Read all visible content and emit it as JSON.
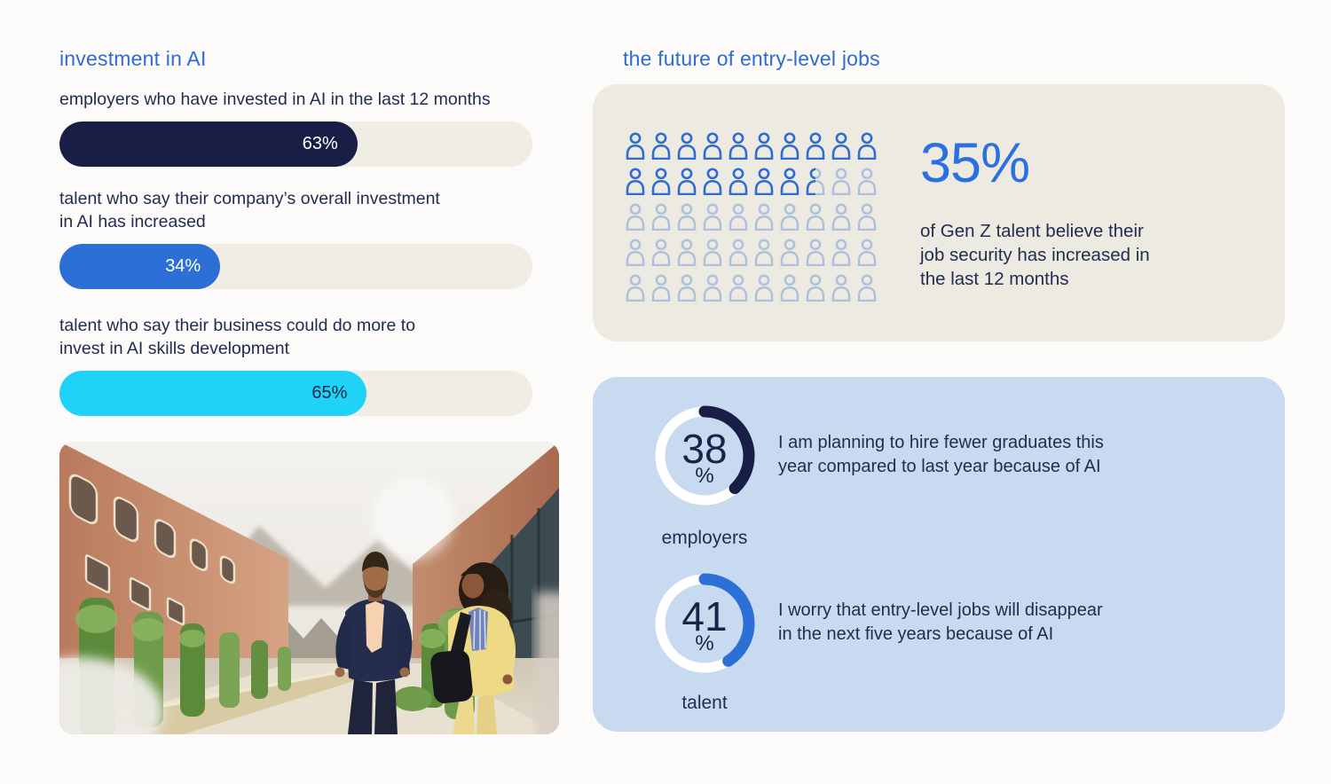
{
  "chart_data": [
    {
      "type": "bar",
      "subtype": "horizontal-pill-bars",
      "title": "investment in AI",
      "categories": [
        "employers who have invested in AI in the last 12 months",
        "talent who say their company’s overall investment\nin AI has increased",
        "talent who say their business could do more to\ninvest in AI skills development"
      ],
      "values": [
        63,
        34,
        65
      ],
      "value_labels": [
        "63%",
        "34%",
        "65%"
      ],
      "unit": "%",
      "xlim": [
        0,
        100
      ],
      "grid": false,
      "bar_colors": [
        "#181e46",
        "#2c6fd7",
        "#1fd3f6"
      ],
      "value_text_colors": [
        "#ffffff",
        "#ffffff",
        "#1b2448"
      ],
      "track_color": "#f0ede5"
    },
    {
      "type": "pie",
      "subtype": "waffle-pictogram",
      "title": "the future of entry-level jobs",
      "values": [
        35,
        65
      ],
      "value": 35,
      "value_label": "35%",
      "description": "of Gen Z talent believe their\njob security has increased in\nthe last 12 months",
      "icons_total": 50,
      "icons_per_row": 10,
      "icons_highlighted": 17.5,
      "icon_color": "#2e6bd3",
      "icon_faded_opacity": 0.32,
      "card_color": "#edeae1",
      "value_color": "#2c6fe2"
    },
    {
      "type": "pie",
      "subtype": "donut",
      "value": 38,
      "values": [
        38,
        62
      ],
      "number_label": "38",
      "percent_sign": "%",
      "group_label": "employers",
      "statement": "I am planning to hire fewer graduates this\nyear compared to last year because of AI",
      "arc_color": "#181e46",
      "ring_color": "#ffffff",
      "card_color": "#c8daf0"
    },
    {
      "type": "pie",
      "subtype": "donut",
      "value": 41,
      "values": [
        41,
        59
      ],
      "number_label": "41",
      "percent_sign": "%",
      "group_label": "talent",
      "statement": "I worry that entry-level jobs will disappear\nin the next five years because of AI",
      "arc_color": "#2c6fd7",
      "ring_color": "#ffffff",
      "card_color": "#c8daf0"
    }
  ]
}
